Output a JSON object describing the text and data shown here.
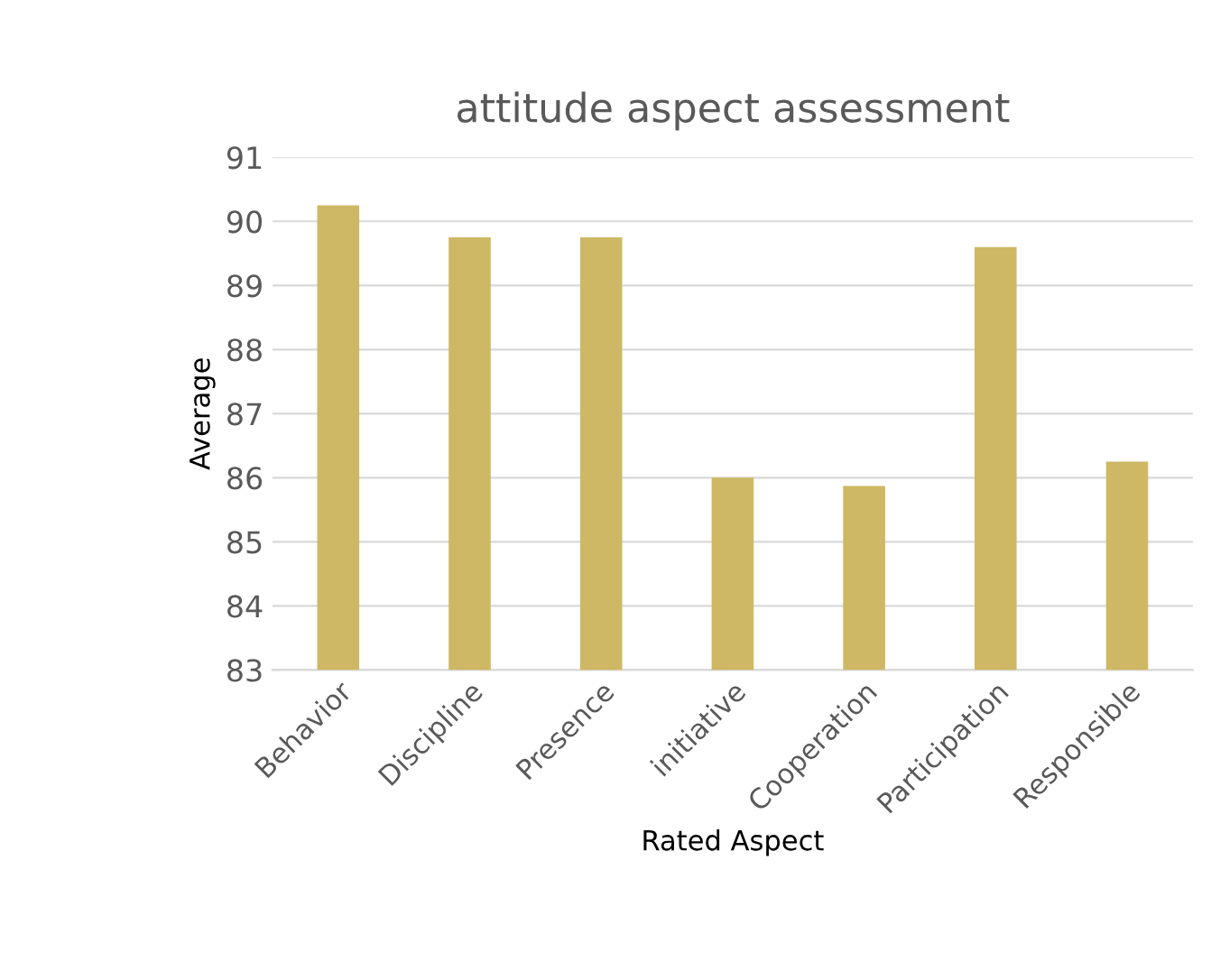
{
  "chart_data": {
    "type": "bar",
    "title": "attitude aspect assessment",
    "xlabel": "Rated Aspect",
    "ylabel": "Average",
    "categories": [
      "Behavior",
      "Discipline",
      "Presence",
      "initiative",
      "Cooperation",
      "Participation",
      "Responsible"
    ],
    "values": [
      90.25,
      89.75,
      89.75,
      86.0,
      85.87,
      89.6,
      86.25
    ],
    "color": "#cfb865",
    "ylim": [
      83,
      91
    ],
    "yticks": [
      83,
      84,
      85,
      86,
      87,
      88,
      89,
      90,
      91
    ],
    "grid": "y",
    "legend": false
  }
}
